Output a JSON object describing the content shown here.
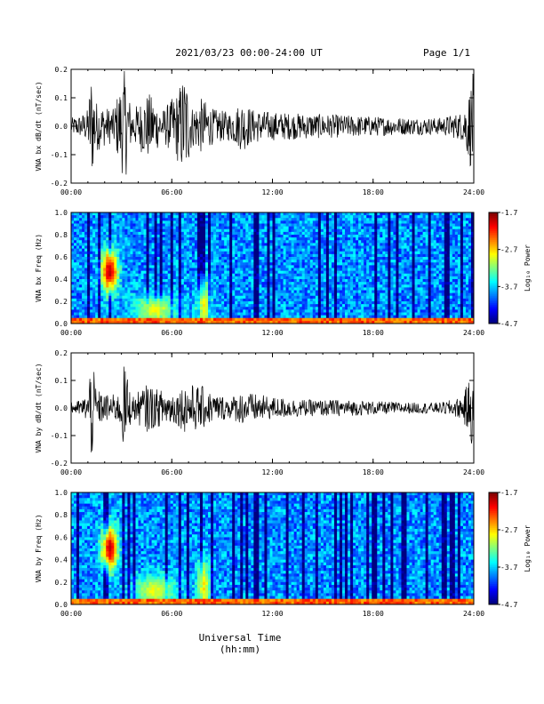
{
  "header": {
    "title": "2021/03/23  00:00-24:00 UT",
    "page": "Page 1/1"
  },
  "xlabel": "Universal Time (hh:mm)",
  "chart_data": [
    {
      "type": "line",
      "ylabel": "VNA bx dB/dt (nT/sec)",
      "ylim": [
        -0.2,
        0.2
      ],
      "yticks": [
        "0.2",
        "0.1",
        "0.0",
        "-0.1",
        "-0.2"
      ],
      "xticks": [
        "00:00",
        "06:00",
        "12:00",
        "18:00",
        "24:00"
      ],
      "series": [
        {
          "envelope": [
            [
              0.0,
              0.03
            ],
            [
              0.6,
              0.04
            ],
            [
              1.0,
              0.06
            ],
            [
              1.2,
              0.2
            ],
            [
              1.5,
              0.09
            ],
            [
              2.0,
              0.07
            ],
            [
              2.5,
              0.06
            ],
            [
              3.2,
              0.2
            ],
            [
              3.6,
              0.06
            ],
            [
              4.0,
              0.08
            ],
            [
              4.6,
              0.12
            ],
            [
              5.0,
              0.09
            ],
            [
              5.5,
              0.06
            ],
            [
              6.3,
              0.12
            ],
            [
              6.8,
              0.2
            ],
            [
              7.2,
              0.07
            ],
            [
              7.8,
              0.1
            ],
            [
              8.5,
              0.06
            ],
            [
              9.5,
              0.05
            ],
            [
              10.2,
              0.09
            ],
            [
              10.8,
              0.06
            ],
            [
              12.0,
              0.05
            ],
            [
              14.0,
              0.045
            ],
            [
              16.0,
              0.04
            ],
            [
              18.0,
              0.035
            ],
            [
              20.0,
              0.03
            ],
            [
              22.0,
              0.03
            ],
            [
              23.3,
              0.05
            ],
            [
              23.7,
              0.12
            ],
            [
              24.0,
              0.2
            ]
          ]
        }
      ]
    },
    {
      "type": "heatmap",
      "ylabel": "VNA bx Freq (Hz)",
      "ylim": [
        0.0,
        1.0
      ],
      "yticks": [
        "1.0",
        "0.8",
        "0.6",
        "0.4",
        "0.2",
        "0.0"
      ],
      "xticks": [
        "00:00",
        "06:00",
        "12:00",
        "18:00",
        "24:00"
      ],
      "colorbar": {
        "label": "Log₁₀ Power",
        "ticks": [
          "-1.7",
          "-2.7",
          "-3.7",
          "-4.7"
        ],
        "range": [
          -4.7,
          -1.7
        ]
      },
      "features": [
        {
          "t": 2.3,
          "f": 0.47,
          "sigma_t": 0.35,
          "sigma_f": 0.14,
          "power": -1.9
        },
        {
          "t": 5.0,
          "f": 0.12,
          "sigma_t": 0.9,
          "sigma_f": 0.1,
          "power": -2.9
        },
        {
          "t": 7.9,
          "f": 0.15,
          "sigma_t": 0.3,
          "sigma_f": 0.18,
          "power": -2.8
        }
      ]
    },
    {
      "type": "line",
      "ylabel": "VNA by dB/dt (nT/sec)",
      "ylim": [
        -0.2,
        0.2
      ],
      "yticks": [
        "0.2",
        "0.1",
        "0.0",
        "-0.1",
        "-0.2"
      ],
      "xticks": [
        "00:00",
        "06:00",
        "12:00",
        "18:00",
        "24:00"
      ],
      "series": [
        {
          "envelope": [
            [
              0.0,
              0.02
            ],
            [
              0.6,
              0.03
            ],
            [
              1.0,
              0.05
            ],
            [
              1.2,
              0.2
            ],
            [
              1.5,
              0.07
            ],
            [
              2.0,
              0.05
            ],
            [
              2.8,
              0.05
            ],
            [
              3.2,
              0.17
            ],
            [
              3.6,
              0.04
            ],
            [
              4.0,
              0.06
            ],
            [
              4.6,
              0.09
            ],
            [
              5.0,
              0.07
            ],
            [
              6.3,
              0.06
            ],
            [
              6.8,
              0.09
            ],
            [
              7.8,
              0.08
            ],
            [
              8.5,
              0.05
            ],
            [
              9.5,
              0.04
            ],
            [
              10.2,
              0.06
            ],
            [
              12.0,
              0.04
            ],
            [
              14.0,
              0.03
            ],
            [
              16.0,
              0.03
            ],
            [
              18.0,
              0.025
            ],
            [
              20.0,
              0.02
            ],
            [
              22.0,
              0.02
            ],
            [
              23.3,
              0.04
            ],
            [
              23.7,
              0.1
            ],
            [
              24.0,
              0.16
            ]
          ]
        }
      ]
    },
    {
      "type": "heatmap",
      "ylabel": "VNA by Freq (Hz)",
      "ylim": [
        0.0,
        1.0
      ],
      "yticks": [
        "1.0",
        "0.8",
        "0.6",
        "0.4",
        "0.2",
        "0.0"
      ],
      "xticks": [
        "00:00",
        "06:00",
        "12:00",
        "18:00",
        "24:00"
      ],
      "colorbar": {
        "label": "Log₁₀ Power",
        "ticks": [
          "-1.7",
          "-2.7",
          "-3.7",
          "-4.7"
        ],
        "range": [
          -4.7,
          -1.7
        ]
      },
      "features": [
        {
          "t": 2.3,
          "f": 0.5,
          "sigma_t": 0.35,
          "sigma_f": 0.14,
          "power": -1.9
        },
        {
          "t": 5.0,
          "f": 0.12,
          "sigma_t": 0.9,
          "sigma_f": 0.1,
          "power": -2.9
        },
        {
          "t": 7.9,
          "f": 0.15,
          "sigma_t": 0.3,
          "sigma_f": 0.18,
          "power": -2.8
        }
      ]
    }
  ]
}
